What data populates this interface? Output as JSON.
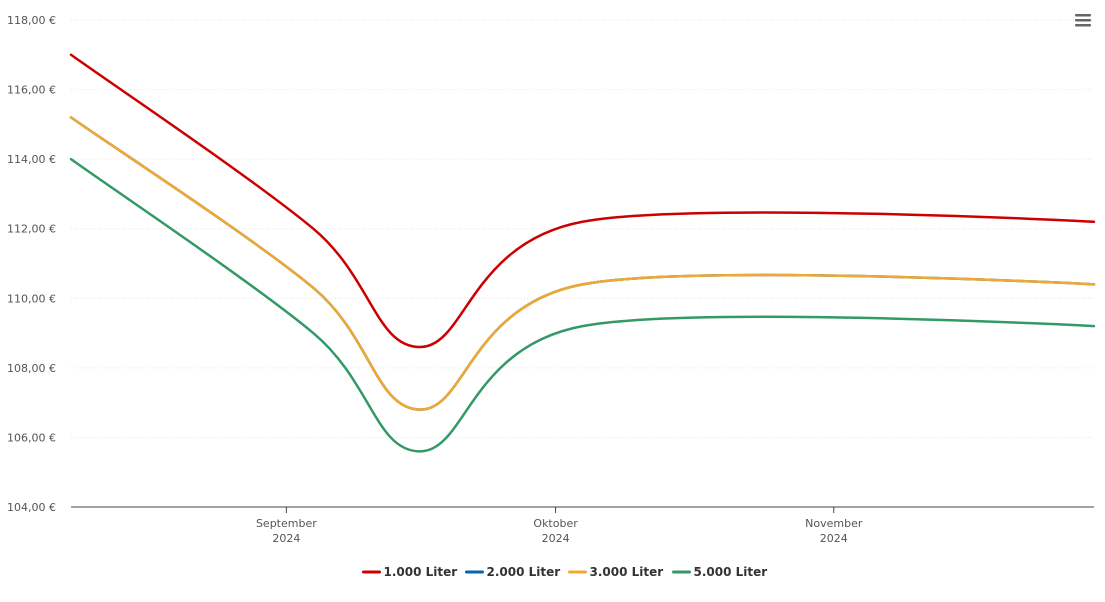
{
  "menu": {
    "icon": "hamburger-menu-icon"
  },
  "chart_data": {
    "type": "line",
    "title": "",
    "xlabel": "",
    "ylabel": "",
    "ylim": [
      104,
      118
    ],
    "xlim": [
      "2024-08-08",
      "2024-11-30"
    ],
    "y_ticks": [
      {
        "value": 104,
        "label": "104,00 €"
      },
      {
        "value": 106,
        "label": "106,00 €"
      },
      {
        "value": 108,
        "label": "108,00 €"
      },
      {
        "value": 110,
        "label": "110,00 €"
      },
      {
        "value": 112,
        "label": "112,00 €"
      },
      {
        "value": 114,
        "label": "114,00 €"
      },
      {
        "value": 116,
        "label": "116,00 €"
      },
      {
        "value": 118,
        "label": "118,00 €"
      }
    ],
    "x_ticks": [
      {
        "date": "2024-09-01",
        "month": "September",
        "year": "2024"
      },
      {
        "date": "2024-10-01",
        "month": "Oktober",
        "year": "2024"
      },
      {
        "date": "2024-11-01",
        "month": "November",
        "year": "2024"
      }
    ],
    "x": [
      "2024-08-08",
      "2024-09-04",
      "2024-09-16",
      "2024-10-04",
      "2024-11-30"
    ],
    "series": [
      {
        "name": "1.000 Liter",
        "color": "#cc0000",
        "values": [
          117.0,
          112.0,
          108.6,
          112.2,
          112.2
        ]
      },
      {
        "name": "2.000 Liter",
        "color": "#0066b3",
        "values": [
          115.2,
          110.3,
          106.8,
          110.4,
          110.4
        ]
      },
      {
        "name": "3.000 Liter",
        "color": "#f0a830",
        "values": [
          115.2,
          110.3,
          106.8,
          110.4,
          110.4
        ]
      },
      {
        "name": "5.000 Liter",
        "color": "#339966",
        "values": [
          114.0,
          109.0,
          105.6,
          109.2,
          109.2
        ]
      }
    ],
    "grid": true,
    "legend": "bottom-center"
  }
}
